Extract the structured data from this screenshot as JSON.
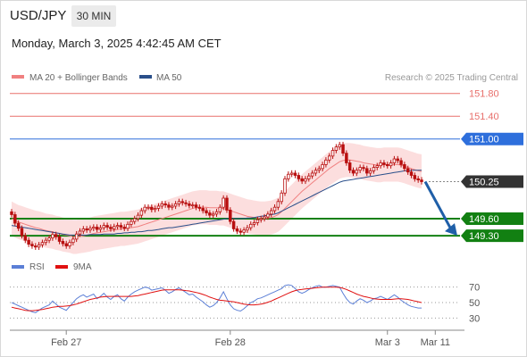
{
  "header": {
    "symbol": "USD/JPY",
    "timeframe": "30 MIN",
    "datetime": "Monday, March 3, 2025 4:42:45 AM CET"
  },
  "legend": {
    "ma20": "MA 20 + Bollinger Bands",
    "ma50": "MA 50",
    "credit": "Research © 2025 Trading Central"
  },
  "rsi_legend": {
    "rsi": "RSI",
    "ma9": "9MA"
  },
  "colors": {
    "resistance": "#e8706c",
    "pivot": "#2e6fdc",
    "current": "#333333",
    "support": "#128012",
    "bollinger_fill": "#fbd8d8",
    "ma20": "#f08080",
    "ma50": "#2a4f8a",
    "candle": "#b80f0f",
    "rsi": "#5b7fd6",
    "rsi_ma": "#e01010",
    "arrow": "#1f5fa8"
  },
  "chart_data": {
    "type": "candlestick",
    "y_range": [
      149.05,
      152.0
    ],
    "x_range": [
      0,
      120
    ],
    "x_ticks": [
      {
        "x": 16,
        "label": "Feb 27"
      },
      {
        "x": 64,
        "label": "Feb 28"
      },
      {
        "x": 110,
        "label": "Mar 3"
      },
      {
        "x": 124,
        "label": "Mar 11"
      }
    ],
    "levels": [
      {
        "value": 151.8,
        "label": "151.80",
        "role": "resistance"
      },
      {
        "value": 151.4,
        "label": "151.40",
        "role": "resistance"
      },
      {
        "value": 151.0,
        "label": "151.00",
        "role": "pivot"
      },
      {
        "value": 150.25,
        "label": "150.25",
        "role": "current"
      },
      {
        "value": 149.6,
        "label": "149.60",
        "role": "support"
      },
      {
        "value": 149.3,
        "label": "149.30",
        "role": "support"
      }
    ],
    "close": [
      149.67,
      149.52,
      149.43,
      149.3,
      149.22,
      149.15,
      149.12,
      149.1,
      149.14,
      149.18,
      149.22,
      149.26,
      149.32,
      149.28,
      149.2,
      149.16,
      149.12,
      149.18,
      149.24,
      149.33,
      149.38,
      149.42,
      149.4,
      149.43,
      149.45,
      149.41,
      149.44,
      149.48,
      149.45,
      149.42,
      149.46,
      149.48,
      149.45,
      149.43,
      149.5,
      149.55,
      149.6,
      149.66,
      149.74,
      149.8,
      149.8,
      149.76,
      149.78,
      149.82,
      149.86,
      149.84,
      149.8,
      149.82,
      149.86,
      149.9,
      149.88,
      149.86,
      149.83,
      149.84,
      149.8,
      149.78,
      149.74,
      149.7,
      149.66,
      149.68,
      149.72,
      149.8,
      149.96,
      149.75,
      149.55,
      149.42,
      149.38,
      149.36,
      149.4,
      149.44,
      149.5,
      149.53,
      149.58,
      149.6,
      149.63,
      149.68,
      149.74,
      149.8,
      149.9,
      150.05,
      150.3,
      150.38,
      150.4,
      150.36,
      150.3,
      150.26,
      150.3,
      150.35,
      150.4,
      150.45,
      150.48,
      150.55,
      150.63,
      150.7,
      150.8,
      150.86,
      150.9,
      150.75,
      150.58,
      150.45,
      150.4,
      150.45,
      150.5,
      150.48,
      150.4,
      150.44,
      150.5,
      150.53,
      150.58,
      150.55,
      150.53,
      150.58,
      150.65,
      150.62,
      150.55,
      150.48,
      150.42,
      150.36,
      150.3,
      150.28,
      150.25
    ],
    "ma20": [
      149.6,
      149.57,
      149.54,
      149.52,
      149.5,
      149.48,
      149.46,
      149.44,
      149.43,
      149.41,
      149.39,
      149.38,
      149.37,
      149.35,
      149.34,
      149.32,
      149.31,
      149.3,
      149.28,
      149.28,
      149.29,
      149.3,
      149.31,
      149.32,
      149.34,
      149.35,
      149.36,
      149.37,
      149.38,
      149.39,
      149.4,
      149.41,
      149.42,
      149.42,
      149.43,
      149.44,
      149.45,
      149.46,
      149.48,
      149.5,
      149.52,
      149.54,
      149.56,
      149.58,
      149.6,
      149.62,
      149.64,
      149.66,
      149.68,
      149.7,
      149.72,
      149.74,
      149.76,
      149.78,
      149.79,
      149.8,
      149.8,
      149.8,
      149.79,
      149.79,
      149.79,
      149.78,
      149.78,
      149.76,
      149.74,
      149.72,
      149.7,
      149.68,
      149.66,
      149.64,
      149.63,
      149.62,
      149.61,
      149.6,
      149.6,
      149.61,
      149.62,
      149.64,
      149.67,
      149.72,
      149.78,
      149.84,
      149.9,
      149.96,
      150.02,
      150.08,
      150.13,
      150.18,
      150.23,
      150.28,
      150.33,
      150.38,
      150.43,
      150.48,
      150.52,
      150.56,
      150.6,
      150.62,
      150.63,
      150.63,
      150.62,
      150.61,
      150.6,
      150.58,
      150.57,
      150.56,
      150.55,
      150.54,
      150.54,
      150.55,
      150.55,
      150.55,
      150.55,
      150.55,
      150.54,
      150.52,
      150.5,
      150.48,
      150.46,
      150.44,
      150.43
    ],
    "ma50": [
      149.48,
      149.47,
      149.46,
      149.45,
      149.44,
      149.43,
      149.42,
      149.41,
      149.4,
      149.39,
      149.38,
      149.37,
      149.36,
      149.35,
      149.34,
      149.33,
      149.32,
      149.31,
      149.31,
      149.31,
      149.31,
      149.31,
      149.31,
      149.32,
      149.32,
      149.32,
      149.32,
      149.33,
      149.33,
      149.33,
      149.33,
      149.34,
      149.34,
      149.35,
      149.35,
      149.36,
      149.36,
      149.37,
      149.37,
      149.38,
      149.39,
      149.39,
      149.4,
      149.41,
      149.42,
      149.43,
      149.44,
      149.44,
      149.45,
      149.46,
      149.47,
      149.48,
      149.49,
      149.5,
      149.51,
      149.52,
      149.53,
      149.54,
      149.55,
      149.56,
      149.57,
      149.58,
      149.59,
      149.6,
      149.6,
      149.6,
      149.6,
      149.6,
      149.6,
      149.61,
      149.61,
      149.62,
      149.63,
      149.64,
      149.65,
      149.66,
      149.67,
      149.68,
      149.7,
      149.73,
      149.76,
      149.79,
      149.82,
      149.85,
      149.88,
      149.91,
      149.94,
      149.97,
      150.0,
      150.03,
      150.06,
      150.09,
      150.12,
      150.15,
      150.18,
      150.21,
      150.24,
      150.26,
      150.27,
      150.28,
      150.29,
      150.3,
      150.31,
      150.32,
      150.33,
      150.34,
      150.35,
      150.36,
      150.37,
      150.38,
      150.39,
      150.4,
      150.41,
      150.42,
      150.43,
      150.44,
      150.44,
      150.45,
      150.45,
      150.45,
      150.45
    ],
    "bb_width": 0.3,
    "rsi": {
      "y_range": [
        20,
        80
      ],
      "ticks": [
        70,
        50,
        30
      ],
      "values": [
        50,
        48,
        46,
        44,
        42,
        40,
        38,
        37,
        40,
        43,
        45,
        47,
        52,
        48,
        44,
        42,
        40,
        45,
        50,
        55,
        58,
        60,
        57,
        59,
        61,
        55,
        58,
        62,
        57,
        54,
        58,
        60,
        55,
        52,
        57,
        61,
        64,
        66,
        68,
        70,
        69,
        66,
        67,
        68,
        69,
        66,
        62,
        64,
        67,
        69,
        66,
        63,
        60,
        61,
        57,
        54,
        51,
        47,
        44,
        46,
        50,
        56,
        64,
        55,
        47,
        42,
        40,
        39,
        42,
        46,
        50,
        52,
        55,
        56,
        58,
        60,
        62,
        64,
        66,
        68,
        72,
        73,
        72,
        68,
        64,
        62,
        64,
        67,
        69,
        71,
        72,
        70,
        70,
        71,
        72,
        71,
        70,
        62,
        55,
        50,
        48,
        52,
        55,
        53,
        50,
        52,
        55,
        56,
        58,
        56,
        54,
        57,
        60,
        57,
        53,
        50,
        47,
        45,
        44,
        43,
        43
      ],
      "ma9": [
        44,
        43,
        42,
        41,
        40,
        39.5,
        39.5,
        40,
        40.5,
        41,
        42,
        43,
        44,
        44.5,
        45,
        45,
        45.5,
        46,
        47,
        48,
        49.5,
        51,
        52.5,
        54,
        55,
        56,
        57,
        57.5,
        58,
        58,
        58,
        58,
        58,
        58,
        58,
        58,
        58.5,
        59,
        60,
        61,
        62,
        63,
        64,
        65,
        66,
        66.5,
        66.5,
        66.5,
        66.5,
        66.5,
        66,
        65.5,
        65,
        64,
        63,
        62,
        60.5,
        59,
        57,
        55.5,
        54,
        53,
        52.5,
        52,
        51.5,
        51,
        50,
        49,
        48,
        47.5,
        47,
        47,
        47.5,
        48,
        49,
        50.5,
        52,
        54,
        56,
        58,
        60,
        62,
        64,
        65.5,
        66.5,
        67,
        67.5,
        68,
        68.5,
        69,
        69.5,
        70,
        70,
        70,
        70,
        70,
        69.5,
        68.5,
        67,
        65,
        63,
        61,
        59.5,
        58,
        57,
        56,
        55,
        54.5,
        54,
        54,
        54,
        54,
        54.5,
        55,
        55,
        54.5,
        54,
        53,
        52,
        51,
        50
      ]
    }
  }
}
